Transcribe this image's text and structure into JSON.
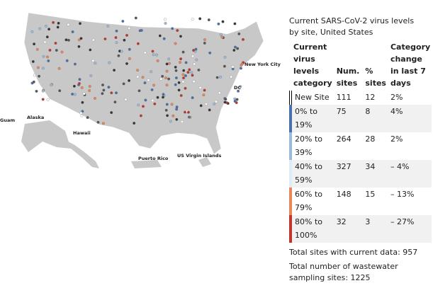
{
  "map": {
    "labels": {
      "guam": "Guam",
      "alaska": "Alaska",
      "hawaii": "Hawaii",
      "puerto_rico": "Puerto Rico",
      "usvi": "US Virgin Islands",
      "nyc": "New York City",
      "dc": "DC"
    }
  },
  "title": "Current SARS-CoV-2 virus levels by site, United States",
  "table": {
    "header": [
      "Current virus levels category",
      "Num. sites",
      "% sites",
      "Category change in last 7 days"
    ],
    "rows": [
      [
        "New Site",
        111,
        12,
        "2%"
      ],
      [
        "0% to 19%",
        75,
        8,
        "4%"
      ],
      [
        "20% to 39%",
        264,
        28,
        "2%"
      ],
      [
        "40% to 59%",
        327,
        34,
        "– 4%"
      ],
      [
        "60% to 79%",
        148,
        15,
        "– 13%"
      ],
      [
        "80% to 100%",
        32,
        3,
        "– 27%"
      ]
    ]
  },
  "footer": [
    "Total sites with current data: 957",
    "Total number of wastewater sampling sites: 1225"
  ]
}
